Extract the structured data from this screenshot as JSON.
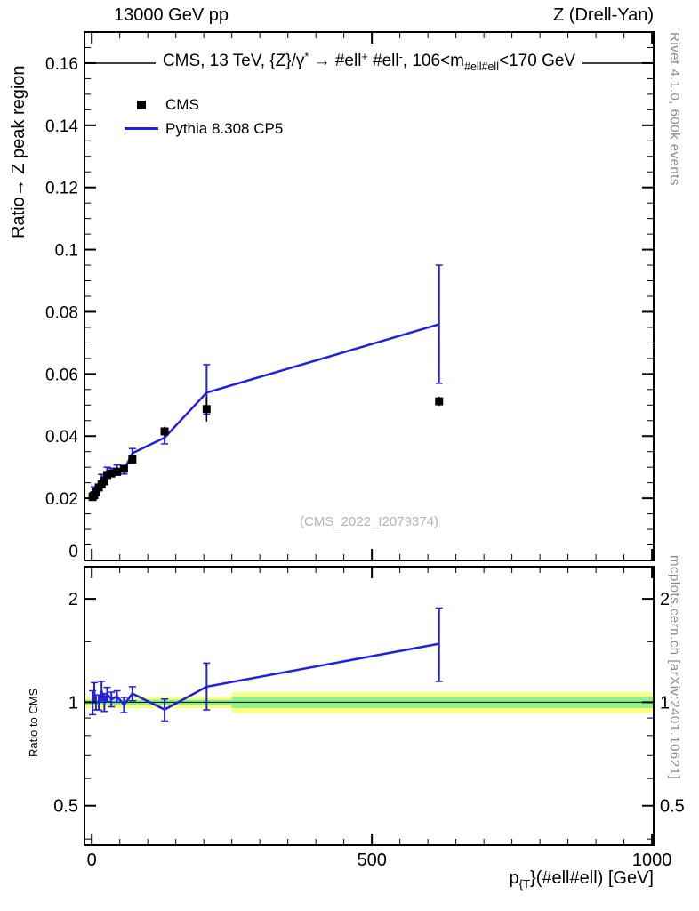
{
  "header": {
    "left": "13000 GeV pp",
    "right": "Z (Drell-Yan)"
  },
  "top_panel": {
    "ylabel": "Ratio→ Z peak region",
    "annotation_segments": [
      {
        "t": "CMS, 13 TeV, {Z}/γ"
      },
      {
        "t": "*",
        "sup": true
      },
      {
        "t": " →  #ell"
      },
      {
        "t": "+",
        "sup": true
      },
      {
        "t": " #ell"
      },
      {
        "t": "-",
        "sup": true
      },
      {
        "t": ",  106<m"
      },
      {
        "t": "#ell#ell",
        "sub": true
      },
      {
        "t": "<170 GeV"
      }
    ],
    "legend": [
      {
        "label": "CMS",
        "marker": "black-square"
      },
      {
        "label": "Pythia 8.308 CP5",
        "marker": "blue-line"
      }
    ],
    "watermark": "(CMS_2022_I2079374)"
  },
  "ratio_panel": {
    "ylabel": "Ratio to CMS"
  },
  "x_axis": {
    "title_segments": [
      {
        "t": "p"
      },
      {
        "t": "{T",
        "sub": true
      },
      {
        "t": "}(#ell#ell) [GeV]"
      }
    ]
  },
  "side_notes": {
    "right_top": "Rivet 4.1.0,  600k events",
    "right_bottom": "mcplots.cern.ch [arXiv:2401.10621]"
  },
  "colors": {
    "line_blue": "#2020dd",
    "band_yellow": "#ffff80",
    "band_green": "#8cf08c",
    "marker_black": "#000000",
    "watermark_gray": "#b4b4b4",
    "margin_text_gray": "#8c8c8c"
  },
  "chart_data": [
    {
      "id": "main",
      "type": "line+scatter",
      "xlim": [
        -13,
        1003
      ],
      "ylim": [
        0,
        0.17
      ],
      "yticks": [
        0,
        0.02,
        0.04,
        0.06,
        0.08,
        0.1,
        0.12,
        0.14,
        0.16
      ],
      "ytick_labels": [
        "0",
        "0.02",
        "0.04",
        "0.06",
        "0.08",
        "0.1",
        "0.12",
        "0.14",
        "0.16"
      ],
      "yticks_minor_step": 0.005,
      "xticks_major": [
        0,
        500,
        1000
      ],
      "xtick_labels": [
        "0",
        "500",
        "1000"
      ],
      "xticks_minor_step": 50,
      "annotation_line_y": 0.16,
      "series": [
        {
          "name": "CMS",
          "type": "scatter",
          "marker": "square",
          "color": "#000000",
          "x": [
            1.5,
            4.5,
            7.5,
            12.5,
            17.5,
            22.5,
            27.5,
            35,
            45,
            57.5,
            72.5,
            130,
            205,
            620
          ],
          "y": [
            0.0205,
            0.021,
            0.022,
            0.0235,
            0.0245,
            0.0255,
            0.0275,
            0.028,
            0.0285,
            0.0295,
            0.0325,
            0.0415,
            0.0487,
            0.0512
          ],
          "yerr": [
            0.0008,
            0.0008,
            0.0008,
            0.0008,
            0.0008,
            0.0009,
            0.0009,
            0.0009,
            0.0009,
            0.001,
            0.0011,
            0.0015,
            0.004,
            0.0015
          ]
        },
        {
          "name": "Pythia 8.308 CP5",
          "type": "line",
          "color": "#2020dd",
          "x": [
            1.5,
            4.5,
            7.5,
            12.5,
            17.5,
            22.5,
            27.5,
            35,
            45,
            57.5,
            72.5,
            130,
            205,
            620
          ],
          "y": [
            0.0205,
            0.0225,
            0.0222,
            0.0235,
            0.0265,
            0.0257,
            0.029,
            0.0287,
            0.0297,
            0.029,
            0.0345,
            0.0395,
            0.054,
            0.076
          ],
          "err_lo": [
            0.0012,
            0.0012,
            0.001,
            0.001,
            0.0012,
            0.0012,
            0.001,
            0.001,
            0.001,
            0.0012,
            0.0015,
            0.002,
            0.007,
            0.019
          ],
          "err_hi": [
            0.0012,
            0.0012,
            0.001,
            0.001,
            0.0012,
            0.0012,
            0.001,
            0.001,
            0.001,
            0.0012,
            0.0015,
            0.002,
            0.009,
            0.019
          ]
        }
      ]
    },
    {
      "id": "ratio",
      "type": "line",
      "yscale": "log",
      "xlim": [
        -13,
        1003
      ],
      "ylim": [
        0.384,
        2.48
      ],
      "yticks": [
        0.5,
        1,
        2
      ],
      "ytick_labels": [
        "0.5",
        "1",
        "2"
      ],
      "yticks_minor": [
        0.4,
        0.6,
        0.7,
        0.8,
        0.9,
        1.5
      ],
      "ref_line_y": 1,
      "bands": [
        {
          "name": "data-uncertainty-outer",
          "color": "#ffff80",
          "segments": [
            {
              "x0": -13,
              "x1": 250,
              "lo": 0.962,
              "hi": 1.038
            },
            {
              "x0": 250,
              "x1": 1003,
              "lo": 0.93,
              "hi": 1.07
            }
          ]
        },
        {
          "name": "data-uncertainty-inner",
          "color": "#8cf08c",
          "segments": [
            {
              "x0": -13,
              "x1": 250,
              "lo": 0.982,
              "hi": 1.018
            },
            {
              "x0": 250,
              "x1": 1003,
              "lo": 0.962,
              "hi": 1.038
            }
          ]
        }
      ],
      "line": {
        "name": "Pythia 8.308 CP5 / CMS",
        "color": "#2020dd",
        "x": [
          1.5,
          4.5,
          7.5,
          12.5,
          17.5,
          22.5,
          27.5,
          35,
          45,
          57.5,
          72.5,
          130,
          205,
          620
        ],
        "y": [
          1.0,
          1.07,
          1.0,
          1.0,
          1.08,
          1.0,
          1.055,
          1.02,
          1.04,
          0.983,
          1.06,
          0.952,
          1.11,
          1.48
        ],
        "err_lo": [
          0.08,
          0.07,
          0.05,
          0.05,
          0.07,
          0.06,
          0.05,
          0.05,
          0.04,
          0.05,
          0.05,
          0.07,
          0.16,
          0.33
        ],
        "err_hi": [
          0.08,
          0.07,
          0.05,
          0.05,
          0.07,
          0.06,
          0.05,
          0.05,
          0.04,
          0.05,
          0.05,
          0.07,
          0.19,
          0.4
        ]
      }
    }
  ]
}
